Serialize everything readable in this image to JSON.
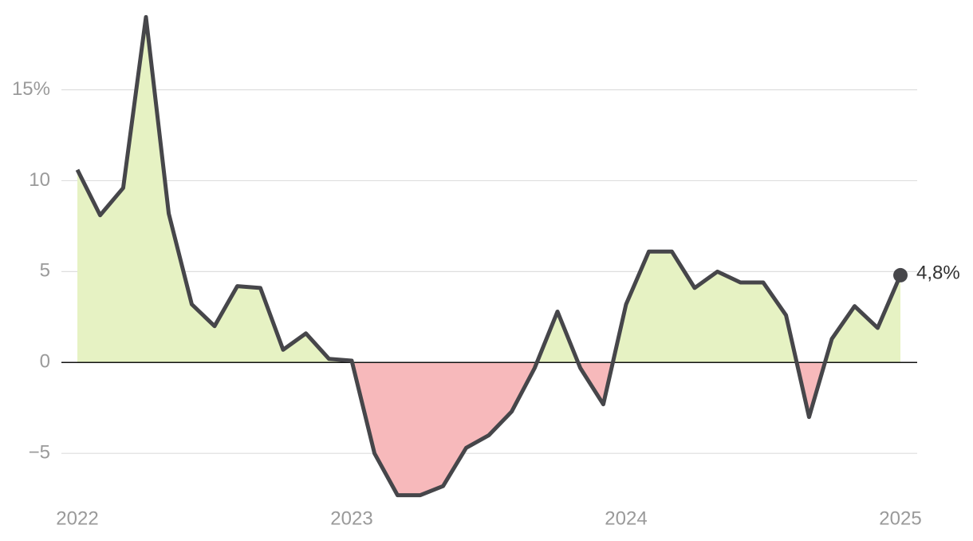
{
  "chart_data": {
    "type": "line",
    "x": [
      2022,
      2022.083,
      2022.167,
      2022.25,
      2022.333,
      2022.417,
      2022.5,
      2022.583,
      2022.667,
      2022.75,
      2022.833,
      2022.917,
      2023,
      2023.083,
      2023.167,
      2023.25,
      2023.333,
      2023.417,
      2023.5,
      2023.583,
      2023.667,
      2023.75,
      2023.833,
      2023.917,
      2024,
      2024.083,
      2024.167,
      2024.25,
      2024.333,
      2024.417,
      2024.5,
      2024.583,
      2024.667,
      2024.75,
      2024.833,
      2024.917,
      2025
    ],
    "series": [
      {
        "color": "#46464a",
        "positive_fill": "#e6f2c3",
        "negative_fill": "#f7b9bb",
        "values": [
          10.6,
          8.1,
          9.6,
          19.0,
          8.2,
          3.2,
          2.0,
          4.2,
          4.1,
          0.7,
          1.6,
          0.2,
          0.1,
          -5.0,
          -7.3,
          -7.3,
          -6.8,
          -4.7,
          -4.0,
          -2.7,
          -0.3,
          2.8,
          -0.3,
          -2.3,
          3.2,
          6.1,
          6.1,
          4.1,
          5.0,
          4.4,
          4.4,
          2.6,
          -3.0,
          1.3,
          3.1,
          1.9,
          4.8
        ]
      }
    ],
    "last_value_label": "4,8%",
    "xlim": [
      2022,
      2025
    ],
    "xticks": [
      2022,
      2023,
      2024,
      2025
    ],
    "ylim": [
      -7.8,
      19.5
    ],
    "yticks": [
      {
        "value": -5,
        "label": "−5"
      },
      0,
      5,
      10,
      {
        "value": 15,
        "label": "15%"
      }
    ],
    "grid": true
  }
}
